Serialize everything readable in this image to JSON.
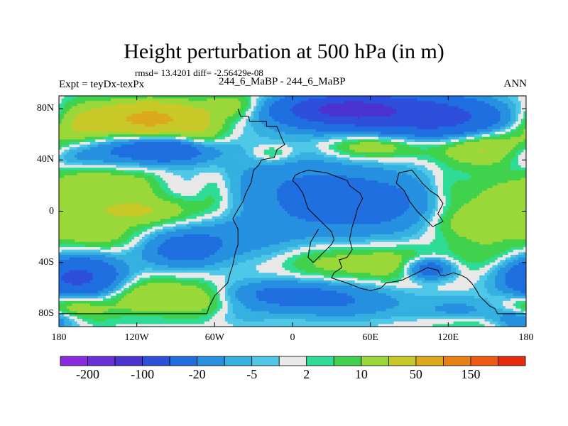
{
  "chart_data": {
    "type": "heatmap",
    "title": "Height perturbation at 500 hPa (in m)",
    "stats_line": "rmsd= 13.4201 diff= -2.56429e-08",
    "left_label": "Expt = teyDx-texPx",
    "center_label": "244_6_MaBP - 244_6_MaBP",
    "right_label": "ANN",
    "x_axis": {
      "range": [
        -180,
        180
      ],
      "ticks": [
        -180,
        -120,
        -60,
        0,
        60,
        120,
        180
      ],
      "tick_labels": [
        "180",
        "120W",
        "60W",
        "0",
        "60E",
        "120E",
        "180"
      ]
    },
    "y_axis": {
      "range": [
        -90,
        90
      ],
      "ticks": [
        80,
        40,
        0,
        -40,
        -80
      ],
      "tick_labels": [
        "80N",
        "40N",
        "0",
        "40S",
        "80S"
      ]
    },
    "colorbar": {
      "levels": [
        -200,
        -150,
        -100,
        -50,
        -20,
        -10,
        -5,
        -2,
        2,
        5,
        10,
        20,
        50,
        100,
        150,
        200
      ],
      "labels": [
        "-200",
        "-100",
        "-20",
        "-5",
        "2",
        "10",
        "50",
        "150"
      ],
      "colors": [
        "#8A2BE2",
        "#6A2FD8",
        "#4B33D0",
        "#2D4FDB",
        "#1F6FE0",
        "#2790E0",
        "#35B0E0",
        "#4FC8E8",
        "#E8E8E8",
        "#2EDC98",
        "#40D24C",
        "#9AD83A",
        "#C8C828",
        "#DCA81C",
        "#E88014",
        "#EE5A10",
        "#E82A0C"
      ]
    },
    "field_sources": [
      {
        "lon": -110,
        "lat": 72,
        "amp": 60,
        "slon": 28,
        "slat": 9
      },
      {
        "lon": -165,
        "lat": 66,
        "amp": 18,
        "slon": 16,
        "slat": 14
      },
      {
        "lon": -165,
        "lat": 45,
        "amp": -22,
        "slon": 22,
        "slat": 9
      },
      {
        "lon": -100,
        "lat": 48,
        "amp": -45,
        "slon": 26,
        "slat": 7
      },
      {
        "lon": -70,
        "lat": 58,
        "amp": 14,
        "slon": 14,
        "slat": 8
      },
      {
        "lon": -45,
        "lat": 82,
        "amp": 18,
        "slon": 18,
        "slat": 8
      },
      {
        "lon": 60,
        "lat": 78,
        "amp": -80,
        "slon": 48,
        "slat": 10
      },
      {
        "lon": 40,
        "lat": 80,
        "amp": -60,
        "slon": 25,
        "slat": 6
      },
      {
        "lon": 120,
        "lat": 70,
        "amp": -40,
        "slon": 30,
        "slat": 10
      },
      {
        "lon": 150,
        "lat": 50,
        "amp": 25,
        "slon": 28,
        "slat": 10
      },
      {
        "lon": 60,
        "lat": 50,
        "amp": 20,
        "slon": 25,
        "slat": 7
      },
      {
        "lon": -15,
        "lat": 45,
        "amp": 12,
        "slon": 12,
        "slat": 5
      },
      {
        "lon": -155,
        "lat": 22,
        "amp": 18,
        "slon": 18,
        "slat": 10
      },
      {
        "lon": -120,
        "lat": 20,
        "amp": 12,
        "slon": 14,
        "slat": 8
      },
      {
        "lon": -120,
        "lat": 0,
        "amp": 22,
        "slon": 35,
        "slat": 8
      },
      {
        "lon": -150,
        "lat": -20,
        "amp": 14,
        "slon": 25,
        "slat": 8
      },
      {
        "lon": -60,
        "lat": 15,
        "amp": 10,
        "slon": 10,
        "slat": 12
      },
      {
        "lon": 0,
        "lat": 20,
        "amp": -15,
        "slon": 45,
        "slat": 22
      },
      {
        "lon": 60,
        "lat": 5,
        "amp": -25,
        "slon": 45,
        "slat": 18
      },
      {
        "lon": -40,
        "lat": -20,
        "amp": -12,
        "slon": 35,
        "slat": 12
      },
      {
        "lon": -85,
        "lat": -30,
        "amp": -28,
        "slon": 22,
        "slat": 10
      },
      {
        "lon": 120,
        "lat": 15,
        "amp": 10,
        "slon": 12,
        "slat": 12
      },
      {
        "lon": 160,
        "lat": 5,
        "amp": 18,
        "slon": 22,
        "slat": 16
      },
      {
        "lon": 160,
        "lat": 0,
        "amp": -6,
        "slon": 10,
        "slat": 8
      },
      {
        "lon": 130,
        "lat": -10,
        "amp": 14,
        "slon": 22,
        "slat": 10
      },
      {
        "lon": 105,
        "lat": -45,
        "amp": -40,
        "slon": 13,
        "slat": 6
      },
      {
        "lon": 90,
        "lat": -42,
        "amp": 12,
        "slon": 24,
        "slat": 10
      },
      {
        "lon": 60,
        "lat": -40,
        "amp": 10,
        "slon": 25,
        "slat": 10
      },
      {
        "lon": 20,
        "lat": -40,
        "amp": 10,
        "slon": 22,
        "slat": 10
      },
      {
        "lon": 150,
        "lat": -35,
        "amp": 8,
        "slon": 20,
        "slat": 10
      },
      {
        "lon": -10,
        "lat": -65,
        "amp": -22,
        "slon": 30,
        "slat": 8
      },
      {
        "lon": 40,
        "lat": -70,
        "amp": -18,
        "slon": 35,
        "slat": 10
      },
      {
        "lon": 130,
        "lat": -78,
        "amp": -12,
        "slon": 25,
        "slat": 8
      },
      {
        "lon": -165,
        "lat": -52,
        "amp": -60,
        "slon": 22,
        "slat": 11
      },
      {
        "lon": -170,
        "lat": -75,
        "amp": 22,
        "slon": 20,
        "slat": 8
      },
      {
        "lon": -110,
        "lat": -66,
        "amp": 20,
        "slon": 25,
        "slat": 10
      },
      {
        "lon": -70,
        "lat": -70,
        "amp": 12,
        "slon": 15,
        "slat": 10
      },
      {
        "lon": -40,
        "lat": -82,
        "amp": -5,
        "slon": 20,
        "slat": 6
      },
      {
        "lon": 140,
        "lat": -88,
        "amp": 10,
        "slon": 30,
        "slat": 5
      },
      {
        "lon": 175,
        "lat": -85,
        "amp": -25,
        "slon": 15,
        "slat": 6
      }
    ],
    "continent_outline": [
      [
        [
          -42,
          80
        ],
        [
          -40,
          74
        ],
        [
          -34,
          74
        ],
        [
          -33,
          70
        ],
        [
          -20,
          70
        ],
        [
          -20,
          66
        ],
        [
          -12,
          66
        ],
        [
          -8,
          56
        ],
        [
          -6,
          52
        ],
        [
          -12,
          48
        ],
        [
          -14,
          42
        ],
        [
          -24,
          40
        ],
        [
          -26,
          36
        ],
        [
          -30,
          32
        ],
        [
          -32,
          22
        ],
        [
          -36,
          14
        ],
        [
          -38,
          8
        ],
        [
          -44,
          -2
        ],
        [
          -46,
          -6
        ],
        [
          -42,
          -14
        ],
        [
          -42,
          -26
        ],
        [
          -44,
          -32
        ],
        [
          -46,
          -42
        ],
        [
          -48,
          -48
        ],
        [
          -50,
          -56
        ],
        [
          -54,
          -60
        ],
        [
          -60,
          -66
        ],
        [
          -64,
          -74
        ],
        [
          -66,
          -80
        ],
        [
          -180,
          -80
        ]
      ],
      [
        [
          12,
          32
        ],
        [
          26,
          30
        ],
        [
          42,
          24
        ],
        [
          44,
          20
        ],
        [
          52,
          14
        ],
        [
          54,
          10
        ],
        [
          50,
          2
        ],
        [
          48,
          -6
        ],
        [
          46,
          -12
        ],
        [
          44,
          -22
        ],
        [
          46,
          -30
        ],
        [
          42,
          -36
        ],
        [
          36,
          -38
        ],
        [
          38,
          -44
        ],
        [
          32,
          -48
        ],
        [
          30,
          -52
        ],
        [
          42,
          -56
        ],
        [
          52,
          -60
        ],
        [
          60,
          -62
        ],
        [
          68,
          -60
        ],
        [
          72,
          -56
        ],
        [
          84,
          -54
        ],
        [
          92,
          -50
        ],
        [
          104,
          -44
        ],
        [
          112,
          -46
        ],
        [
          114,
          -50
        ],
        [
          118,
          -50
        ],
        [
          124,
          -48
        ],
        [
          130,
          -50
        ],
        [
          134,
          -52
        ],
        [
          138,
          -56
        ],
        [
          142,
          -62
        ],
        [
          144,
          -66
        ],
        [
          148,
          -70
        ],
        [
          152,
          -74
        ],
        [
          156,
          -76
        ],
        [
          158,
          -80
        ],
        [
          180,
          -80
        ]
      ],
      [
        [
          12,
          32
        ],
        [
          6,
          30
        ],
        [
          2,
          28
        ],
        [
          0,
          24
        ],
        [
          4,
          20
        ],
        [
          8,
          14
        ],
        [
          10,
          8
        ],
        [
          12,
          2
        ],
        [
          16,
          -2
        ],
        [
          20,
          -6
        ],
        [
          26,
          -12
        ],
        [
          30,
          -16
        ],
        [
          32,
          -22
        ],
        [
          30,
          -26
        ],
        [
          26,
          -30
        ],
        [
          20,
          -36
        ],
        [
          16,
          -40
        ],
        [
          12,
          -36
        ],
        [
          14,
          -24
        ],
        [
          20,
          -14
        ]
      ],
      [
        [
          82,
          30
        ],
        [
          92,
          32
        ],
        [
          100,
          22
        ],
        [
          106,
          16
        ],
        [
          112,
          12
        ],
        [
          116,
          6
        ],
        [
          112,
          -2
        ],
        [
          116,
          -8
        ],
        [
          108,
          -12
        ],
        [
          102,
          -6
        ],
        [
          96,
          0
        ],
        [
          90,
          8
        ],
        [
          86,
          16
        ],
        [
          80,
          22
        ],
        [
          82,
          30
        ]
      ]
    ]
  }
}
